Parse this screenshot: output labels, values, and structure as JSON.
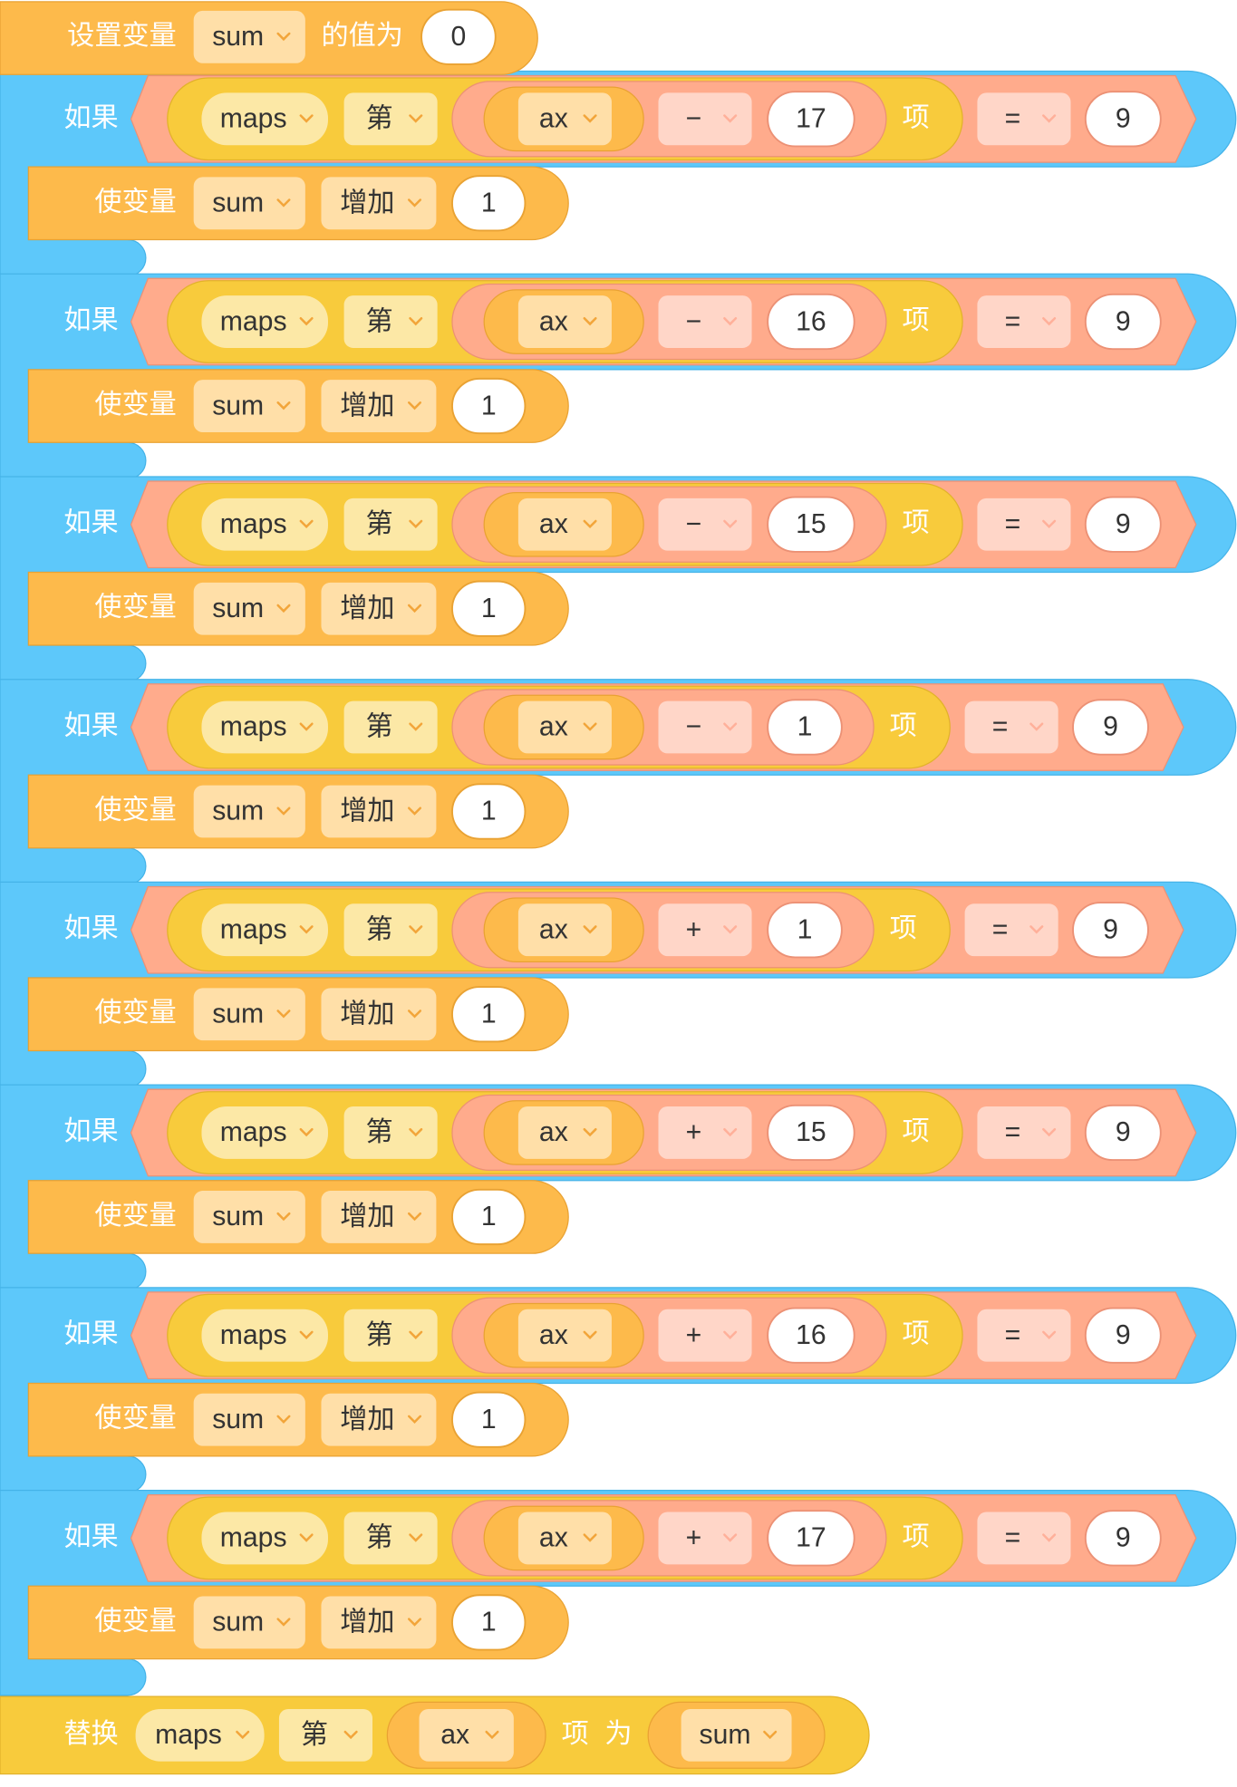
{
  "set_block": {
    "label": "设置变量",
    "variable": "sum",
    "label2": "的值为",
    "value": 0
  },
  "if_blocks": [
    {
      "label": "如果",
      "list": "maps",
      "index_word": "第",
      "var": "ax",
      "op": "−",
      "offset": 17,
      "item_word": "项",
      "cmp": "=",
      "target": 9,
      "body": {
        "label": "使变量",
        "variable": "sum",
        "action": "增加",
        "amount": 1
      }
    },
    {
      "label": "如果",
      "list": "maps",
      "index_word": "第",
      "var": "ax",
      "op": "−",
      "offset": 16,
      "item_word": "项",
      "cmp": "=",
      "target": 9,
      "body": {
        "label": "使变量",
        "variable": "sum",
        "action": "增加",
        "amount": 1
      }
    },
    {
      "label": "如果",
      "list": "maps",
      "index_word": "第",
      "var": "ax",
      "op": "−",
      "offset": 15,
      "item_word": "项",
      "cmp": "=",
      "target": 9,
      "body": {
        "label": "使变量",
        "variable": "sum",
        "action": "增加",
        "amount": 1
      }
    },
    {
      "label": "如果",
      "list": "maps",
      "index_word": "第",
      "var": "ax",
      "op": "−",
      "offset": 1,
      "item_word": "项",
      "cmp": "=",
      "target": 9,
      "body": {
        "label": "使变量",
        "variable": "sum",
        "action": "增加",
        "amount": 1
      }
    },
    {
      "label": "如果",
      "list": "maps",
      "index_word": "第",
      "var": "ax",
      "op": "+",
      "offset": 1,
      "item_word": "项",
      "cmp": "=",
      "target": 9,
      "body": {
        "label": "使变量",
        "variable": "sum",
        "action": "增加",
        "amount": 1
      }
    },
    {
      "label": "如果",
      "list": "maps",
      "index_word": "第",
      "var": "ax",
      "op": "+",
      "offset": 15,
      "item_word": "项",
      "cmp": "=",
      "target": 9,
      "body": {
        "label": "使变量",
        "variable": "sum",
        "action": "增加",
        "amount": 1
      }
    },
    {
      "label": "如果",
      "list": "maps",
      "index_word": "第",
      "var": "ax",
      "op": "+",
      "offset": 16,
      "item_word": "项",
      "cmp": "=",
      "target": 9,
      "body": {
        "label": "使变量",
        "variable": "sum",
        "action": "增加",
        "amount": 1
      }
    },
    {
      "label": "如果",
      "list": "maps",
      "index_word": "第",
      "var": "ax",
      "op": "+",
      "offset": 17,
      "item_word": "项",
      "cmp": "=",
      "target": 9,
      "body": {
        "label": "使变量",
        "variable": "sum",
        "action": "增加",
        "amount": 1
      }
    }
  ],
  "replace_block": {
    "label": "替换",
    "list": "maps",
    "index_word": "第",
    "var": "ax",
    "item_word": "项",
    "label2": "为",
    "value_var": "sum"
  }
}
